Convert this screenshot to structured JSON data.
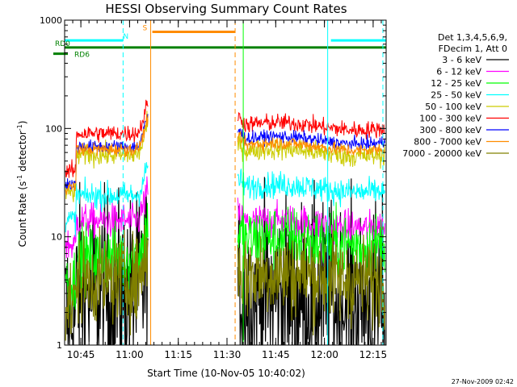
{
  "chart_data": {
    "type": "line",
    "title": "HESSI Observing Summary Count Rates",
    "xlabel": "Start Time (10-Nov-05 10:40:02)",
    "ylabel_main": "Count Rate (s",
    "ylabel_sup1": "-1",
    "ylabel_mid": " detector",
    "ylabel_sup2": "-1",
    "ylabel_end": ")",
    "y_scale": "log",
    "ylim": [
      1,
      1000
    ],
    "xlim_minutes": [
      0,
      99
    ],
    "x_ticks": [
      {
        "m": 5,
        "label": "10:45"
      },
      {
        "m": 20,
        "label": "11:00"
      },
      {
        "m": 35,
        "label": "11:15"
      },
      {
        "m": 50,
        "label": "11:30"
      },
      {
        "m": 65,
        "label": "11:45"
      },
      {
        "m": 80,
        "label": "12:00"
      },
      {
        "m": 95,
        "label": "12:15"
      }
    ],
    "y_ticks": [
      {
        "v": 1,
        "label": "1"
      },
      {
        "v": 10,
        "label": "10"
      },
      {
        "v": 100,
        "label": "100"
      },
      {
        "v": 1000,
        "label": "1000"
      }
    ],
    "legend_header": [
      "Det 1,3,4,5,6,9,",
      "FDecim 1, Att 0"
    ],
    "legend_position": "right",
    "series": [
      {
        "name": "3 - 6 keV",
        "color": "#000000",
        "before": 3,
        "after": 2.6,
        "noise": 0.45
      },
      {
        "name": "6 - 12 keV",
        "color": "#ff00ff",
        "before": 14,
        "after": 13,
        "noise": 0.08
      },
      {
        "name": "12 - 25 keV",
        "color": "#00ff00",
        "before": 6.5,
        "after": 9,
        "noise": 0.15
      },
      {
        "name": "25 - 50 keV",
        "color": "#00ffff",
        "before": 24,
        "after": 28,
        "noise": 0.06
      },
      {
        "name": "50 - 100 keV",
        "color": "#cccc00",
        "before": 57,
        "after": 60,
        "noise": 0.05
      },
      {
        "name": "100 - 300 keV",
        "color": "#ff0000",
        "before": 90,
        "after": 105,
        "noise": 0.04
      },
      {
        "name": "300 - 800 keV",
        "color": "#0000ff",
        "before": 68,
        "after": 78,
        "noise": 0.03
      },
      {
        "name": "800 - 7000 keV",
        "color": "#ff8c00",
        "before": 64,
        "after": 68,
        "noise": 0.03
      },
      {
        "name": "7000 - 20000 keV",
        "color": "#808000",
        "before": 4,
        "after": 4.3,
        "noise": 0.2
      }
    ],
    "data_gap_minutes": [
      26,
      53
    ],
    "flag_bars": [
      {
        "label": "N",
        "color": "#00ffff",
        "segments": [
          [
            0,
            18
          ],
          [
            82,
            99
          ]
        ],
        "level": 650,
        "label_at": 18
      },
      {
        "label": "S",
        "color": "#ff8c00",
        "segments": [
          [
            27,
            52.5
          ]
        ],
        "level": 780,
        "label_at": 24
      },
      {
        "label": "RD0",
        "color": "#008000",
        "segments": [
          [
            0,
            99
          ]
        ],
        "level": 560,
        "label_at": -3
      },
      {
        "label": "RD6",
        "color": "#008000",
        "segments": [
          [
            -3,
            1
          ]
        ],
        "level": 490,
        "label_at": 3
      }
    ],
    "vertical_markers": [
      {
        "m": 18,
        "color": "#00ffff",
        "style": "dashed"
      },
      {
        "m": 81,
        "color": "#00ffff",
        "style": "solid"
      },
      {
        "m": 98,
        "color": "#00ffff",
        "style": "dashed"
      },
      {
        "m": 26.5,
        "color": "#ff8c00",
        "style": "solid"
      },
      {
        "m": 52.5,
        "color": "#ff8c00",
        "style": "dashed"
      },
      {
        "m": 55,
        "color": "#00ff00",
        "style": "solid"
      }
    ],
    "footer_timestamp": "27-Nov-2009 02:42"
  }
}
